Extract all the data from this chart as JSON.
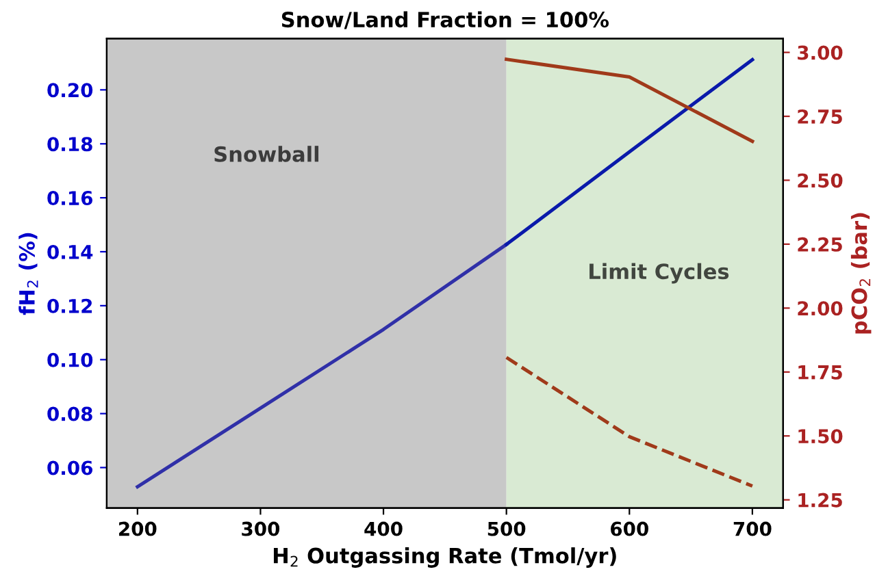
{
  "chart_data": {
    "type": "line",
    "title": "Snow/Land Fraction = 100%",
    "xlabel": "H$_{2}$ Outgassing Rate (Tmol/yr)",
    "ylabel": "fH$_{2}$ (%)",
    "y2label": "pCO$_{2}$ (bar)",
    "x": [
      200,
      300,
      400,
      500,
      600,
      700
    ],
    "series": [
      {
        "color": "#3030a8",
        "values": [
          0.0529,
          0.082,
          0.1112,
          0.1427,
          null,
          null
        ]
      },
      {
        "color": "#0a1aaa",
        "values": [
          null,
          null,
          null,
          0.1427,
          0.177,
          0.2112
        ]
      },
      {
        "color": "#a03a1a",
        "axis": "y2",
        "values": [
          null,
          null,
          null,
          2.973,
          2.904,
          2.652
        ]
      },
      {
        "color": "#a03a1a",
        "axis": "y2",
        "line_style": "dashed",
        "values": [
          null,
          null,
          null,
          1.807,
          1.497,
          1.304
        ]
      }
    ],
    "xlim": [
      175,
      725
    ],
    "xticks": [
      200,
      300,
      400,
      500,
      600,
      700
    ],
    "ylim": [
      0.045,
      0.219
    ],
    "yticks": [
      {
        "value": 0.06,
        "label": "0.06"
      },
      {
        "value": 0.08,
        "label": "0.08"
      },
      {
        "value": 0.1,
        "label": "0.10"
      },
      {
        "value": 0.12,
        "label": "0.12"
      },
      {
        "value": 0.14,
        "label": "0.14"
      },
      {
        "value": 0.16,
        "label": "0.16"
      },
      {
        "value": 0.18,
        "label": "0.18"
      },
      {
        "value": 0.2,
        "label": "0.20"
      }
    ],
    "y2lim": [
      1.218,
      3.054
    ],
    "y2ticks": [
      {
        "value": 1.25,
        "label": "1.25"
      },
      {
        "value": 1.5,
        "label": "1.50"
      },
      {
        "value": 1.75,
        "label": "1.75"
      },
      {
        "value": 2.0,
        "label": "2.00"
      },
      {
        "value": 2.25,
        "label": "2.25"
      },
      {
        "value": 2.5,
        "label": "2.50"
      },
      {
        "value": 2.75,
        "label": "2.75"
      },
      {
        "value": 3.0,
        "label": "3.00"
      }
    ],
    "bands": [
      {
        "axis": "x",
        "from": 175,
        "to": 500,
        "label": "Snowball",
        "color": "#c8c8c8"
      },
      {
        "axis": "x",
        "from": 500,
        "to": 725,
        "label": "Limit Cycles",
        "color": "#d9ead3"
      }
    ],
    "grid": false,
    "legend": false,
    "marker": "none",
    "line_style": "solid"
  }
}
